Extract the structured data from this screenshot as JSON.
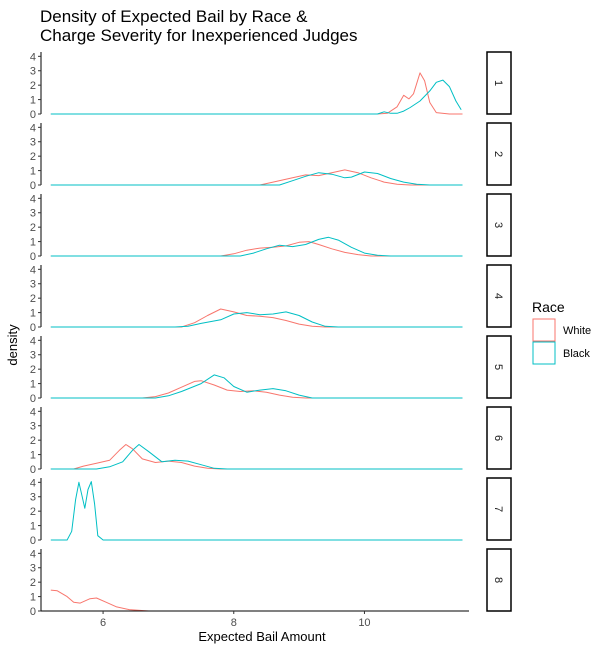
{
  "chart_data": {
    "type": "line",
    "subtype": "faceted density",
    "title_lines": [
      "Density of Expected Bail by Race &",
      "Charge Severity for Inexperienced Judges"
    ],
    "xlabel": "Expected Bail Amount",
    "ylabel": "density",
    "xlim": [
      5.05,
      11.6
    ],
    "x_ticks": [
      6,
      8,
      10
    ],
    "ylim": [
      0,
      4.3
    ],
    "y_ticks": [
      0,
      1,
      2,
      3,
      4
    ],
    "grid": false,
    "legend": {
      "title": "Race",
      "placement": "right",
      "entries": [
        {
          "name": "White",
          "color": "#F8766D"
        },
        {
          "name": "Black",
          "color": "#00BFC4"
        }
      ]
    },
    "facets": [
      {
        "label": "1",
        "series": [
          {
            "name": "White",
            "points": [
              [
                5.2,
                0
              ],
              [
                10.2,
                0
              ],
              [
                10.35,
                0.05
              ],
              [
                10.5,
                0.5
              ],
              [
                10.6,
                1.3
              ],
              [
                10.68,
                1.05
              ],
              [
                10.75,
                1.4
              ],
              [
                10.85,
                2.85
              ],
              [
                10.92,
                2.3
              ],
              [
                11.0,
                0.8
              ],
              [
                11.1,
                0.1
              ],
              [
                11.3,
                0
              ],
              [
                11.5,
                0
              ]
            ]
          },
          {
            "name": "Black",
            "points": [
              [
                5.2,
                0
              ],
              [
                10.2,
                0
              ],
              [
                10.3,
                0.15
              ],
              [
                10.4,
                0.05
              ],
              [
                10.5,
                0.05
              ],
              [
                10.6,
                0.2
              ],
              [
                10.7,
                0.45
              ],
              [
                10.85,
                0.9
              ],
              [
                11.0,
                1.6
              ],
              [
                11.1,
                2.2
              ],
              [
                11.2,
                2.35
              ],
              [
                11.3,
                1.9
              ],
              [
                11.4,
                0.9
              ],
              [
                11.48,
                0.3
              ]
            ]
          }
        ]
      },
      {
        "label": "2",
        "series": [
          {
            "name": "White",
            "points": [
              [
                5.2,
                0
              ],
              [
                8.4,
                0
              ],
              [
                8.6,
                0.2
              ],
              [
                8.9,
                0.5
              ],
              [
                9.1,
                0.7
              ],
              [
                9.3,
                0.65
              ],
              [
                9.5,
                0.85
              ],
              [
                9.7,
                1.05
              ],
              [
                9.9,
                0.85
              ],
              [
                10.1,
                0.5
              ],
              [
                10.3,
                0.2
              ],
              [
                10.5,
                0.05
              ],
              [
                10.7,
                0
              ],
              [
                11.5,
                0
              ]
            ]
          },
          {
            "name": "Black",
            "points": [
              [
                5.2,
                0
              ],
              [
                8.7,
                0
              ],
              [
                8.9,
                0.3
              ],
              [
                9.1,
                0.6
              ],
              [
                9.3,
                0.85
              ],
              [
                9.5,
                0.75
              ],
              [
                9.7,
                0.5
              ],
              [
                9.8,
                0.55
              ],
              [
                10.0,
                0.9
              ],
              [
                10.2,
                0.8
              ],
              [
                10.4,
                0.45
              ],
              [
                10.6,
                0.2
              ],
              [
                10.8,
                0.05
              ],
              [
                11.0,
                0
              ],
              [
                11.5,
                0
              ]
            ]
          }
        ]
      },
      {
        "label": "3",
        "series": [
          {
            "name": "White",
            "points": [
              [
                5.2,
                0
              ],
              [
                7.8,
                0
              ],
              [
                8.0,
                0.15
              ],
              [
                8.2,
                0.4
              ],
              [
                8.4,
                0.55
              ],
              [
                8.6,
                0.6
              ],
              [
                8.8,
                0.7
              ],
              [
                9.0,
                0.95
              ],
              [
                9.15,
                1.0
              ],
              [
                9.3,
                0.8
              ],
              [
                9.5,
                0.5
              ],
              [
                9.7,
                0.25
              ],
              [
                9.9,
                0.1
              ],
              [
                10.1,
                0
              ],
              [
                11.5,
                0
              ]
            ]
          },
          {
            "name": "Black",
            "points": [
              [
                5.2,
                0
              ],
              [
                8.1,
                0
              ],
              [
                8.3,
                0.2
              ],
              [
                8.5,
                0.5
              ],
              [
                8.7,
                0.75
              ],
              [
                8.9,
                0.65
              ],
              [
                9.1,
                0.8
              ],
              [
                9.3,
                1.15
              ],
              [
                9.45,
                1.3
              ],
              [
                9.6,
                1.1
              ],
              [
                9.8,
                0.6
              ],
              [
                10.0,
                0.2
              ],
              [
                10.2,
                0.05
              ],
              [
                10.4,
                0
              ],
              [
                11.5,
                0
              ]
            ]
          }
        ]
      },
      {
        "label": "4",
        "series": [
          {
            "name": "White",
            "points": [
              [
                5.2,
                0
              ],
              [
                7.2,
                0
              ],
              [
                7.4,
                0.3
              ],
              [
                7.6,
                0.8
              ],
              [
                7.8,
                1.25
              ],
              [
                8.0,
                1.05
              ],
              [
                8.2,
                0.8
              ],
              [
                8.4,
                0.75
              ],
              [
                8.6,
                0.65
              ],
              [
                8.8,
                0.45
              ],
              [
                9.0,
                0.2
              ],
              [
                9.2,
                0.05
              ],
              [
                9.4,
                0
              ],
              [
                11.5,
                0
              ]
            ]
          },
          {
            "name": "Black",
            "points": [
              [
                5.2,
                0
              ],
              [
                7.1,
                0
              ],
              [
                7.3,
                0.05
              ],
              [
                7.5,
                0.25
              ],
              [
                7.8,
                0.5
              ],
              [
                8.0,
                0.9
              ],
              [
                8.2,
                1.0
              ],
              [
                8.4,
                0.85
              ],
              [
                8.6,
                0.9
              ],
              [
                8.8,
                1.05
              ],
              [
                9.0,
                0.8
              ],
              [
                9.2,
                0.35
              ],
              [
                9.4,
                0.05
              ],
              [
                9.6,
                0
              ],
              [
                11.5,
                0
              ]
            ]
          }
        ]
      },
      {
        "label": "5",
        "series": [
          {
            "name": "White",
            "points": [
              [
                5.2,
                0
              ],
              [
                6.6,
                0
              ],
              [
                6.8,
                0.1
              ],
              [
                7.0,
                0.35
              ],
              [
                7.2,
                0.75
              ],
              [
                7.4,
                1.15
              ],
              [
                7.5,
                1.2
              ],
              [
                7.7,
                0.9
              ],
              [
                7.9,
                0.55
              ],
              [
                8.1,
                0.45
              ],
              [
                8.3,
                0.5
              ],
              [
                8.5,
                0.4
              ],
              [
                8.7,
                0.2
              ],
              [
                8.9,
                0.05
              ],
              [
                9.1,
                0
              ],
              [
                11.5,
                0
              ]
            ]
          },
          {
            "name": "Black",
            "points": [
              [
                5.2,
                0
              ],
              [
                6.8,
                0
              ],
              [
                7.0,
                0.15
              ],
              [
                7.2,
                0.45
              ],
              [
                7.5,
                1.0
              ],
              [
                7.7,
                1.6
              ],
              [
                7.85,
                1.4
              ],
              [
                8.0,
                0.8
              ],
              [
                8.2,
                0.4
              ],
              [
                8.4,
                0.55
              ],
              [
                8.6,
                0.65
              ],
              [
                8.8,
                0.5
              ],
              [
                9.0,
                0.2
              ],
              [
                9.2,
                0
              ],
              [
                11.5,
                0
              ]
            ]
          }
        ]
      },
      {
        "label": "6",
        "series": [
          {
            "name": "White",
            "points": [
              [
                5.2,
                0
              ],
              [
                5.55,
                0
              ],
              [
                5.7,
                0.2
              ],
              [
                5.9,
                0.4
              ],
              [
                6.1,
                0.6
              ],
              [
                6.25,
                1.3
              ],
              [
                6.35,
                1.7
              ],
              [
                6.45,
                1.4
              ],
              [
                6.6,
                0.7
              ],
              [
                6.8,
                0.45
              ],
              [
                7.0,
                0.55
              ],
              [
                7.2,
                0.45
              ],
              [
                7.4,
                0.2
              ],
              [
                7.6,
                0.05
              ],
              [
                7.8,
                0
              ],
              [
                11.5,
                0
              ]
            ]
          },
          {
            "name": "Black",
            "points": [
              [
                5.2,
                0
              ],
              [
                5.9,
                0
              ],
              [
                6.1,
                0.15
              ],
              [
                6.3,
                0.5
              ],
              [
                6.45,
                1.3
              ],
              [
                6.55,
                1.7
              ],
              [
                6.7,
                1.2
              ],
              [
                6.9,
                0.5
              ],
              [
                7.1,
                0.6
              ],
              [
                7.3,
                0.55
              ],
              [
                7.5,
                0.3
              ],
              [
                7.7,
                0.05
              ],
              [
                7.9,
                0
              ],
              [
                11.5,
                0
              ]
            ]
          }
        ]
      },
      {
        "label": "7",
        "series": [
          {
            "name": "White",
            "points": []
          },
          {
            "name": "Black",
            "points": [
              [
                5.2,
                0
              ],
              [
                5.45,
                0
              ],
              [
                5.52,
                0.6
              ],
              [
                5.58,
                2.8
              ],
              [
                5.63,
                4.0
              ],
              [
                5.68,
                3.0
              ],
              [
                5.72,
                2.2
              ],
              [
                5.77,
                3.5
              ],
              [
                5.82,
                4.05
              ],
              [
                5.87,
                2.5
              ],
              [
                5.92,
                0.3
              ],
              [
                6.0,
                0
              ],
              [
                11.5,
                0
              ]
            ]
          }
        ]
      },
      {
        "label": "8",
        "series": [
          {
            "name": "White",
            "points": [
              [
                5.2,
                1.45
              ],
              [
                5.3,
                1.4
              ],
              [
                5.45,
                1.0
              ],
              [
                5.55,
                0.6
              ],
              [
                5.65,
                0.55
              ],
              [
                5.8,
                0.85
              ],
              [
                5.9,
                0.9
              ],
              [
                6.05,
                0.6
              ],
              [
                6.2,
                0.3
              ],
              [
                6.4,
                0.1
              ],
              [
                6.7,
                0
              ],
              [
                11.5,
                0
              ]
            ]
          },
          {
            "name": "Black",
            "points": []
          }
        ]
      }
    ]
  }
}
